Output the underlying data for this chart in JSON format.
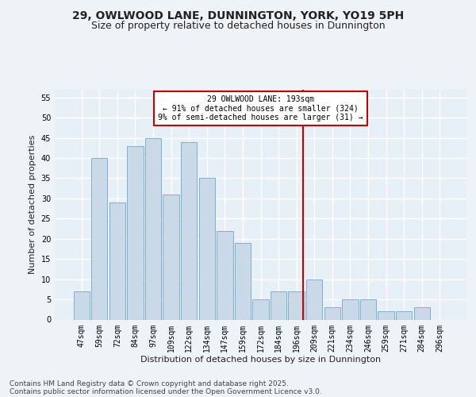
{
  "title_line1": "29, OWLWOOD LANE, DUNNINGTON, YORK, YO19 5PH",
  "title_line2": "Size of property relative to detached houses in Dunnington",
  "xlabel": "Distribution of detached houses by size in Dunnington",
  "ylabel": "Number of detached properties",
  "bar_labels": [
    "47sqm",
    "59sqm",
    "72sqm",
    "84sqm",
    "97sqm",
    "109sqm",
    "122sqm",
    "134sqm",
    "147sqm",
    "159sqm",
    "172sqm",
    "184sqm",
    "196sqm",
    "209sqm",
    "221sqm",
    "234sqm",
    "246sqm",
    "259sqm",
    "271sqm",
    "284sqm",
    "296sqm"
  ],
  "bar_values": [
    7,
    40,
    29,
    43,
    45,
    31,
    44,
    35,
    22,
    19,
    5,
    7,
    7,
    10,
    3,
    5,
    5,
    2,
    2,
    3,
    0
  ],
  "bar_color": "#c9d9e8",
  "bar_edgecolor": "#6ea8ce",
  "ylim": [
    0,
    57
  ],
  "yticks": [
    0,
    5,
    10,
    15,
    20,
    25,
    30,
    35,
    40,
    45,
    50,
    55
  ],
  "vline_x": 12.38,
  "vline_color": "#cc0000",
  "annotation_text": "29 OWLWOOD LANE: 193sqm\n← 91% of detached houses are smaller (324)\n9% of semi-detached houses are larger (31) →",
  "annotation_box_color": "#cc0000",
  "footer_line1": "Contains HM Land Registry data © Crown copyright and database right 2025.",
  "footer_line2": "Contains public sector information licensed under the Open Government Licence v3.0.",
  "bg_color": "#eef3f8",
  "plot_bg_color": "#e8f0f7",
  "grid_color": "#ffffff",
  "title_fontsize": 10,
  "subtitle_fontsize": 9,
  "tick_fontsize": 7,
  "footer_fontsize": 6.5,
  "ylabel_fontsize": 8,
  "xlabel_fontsize": 8
}
